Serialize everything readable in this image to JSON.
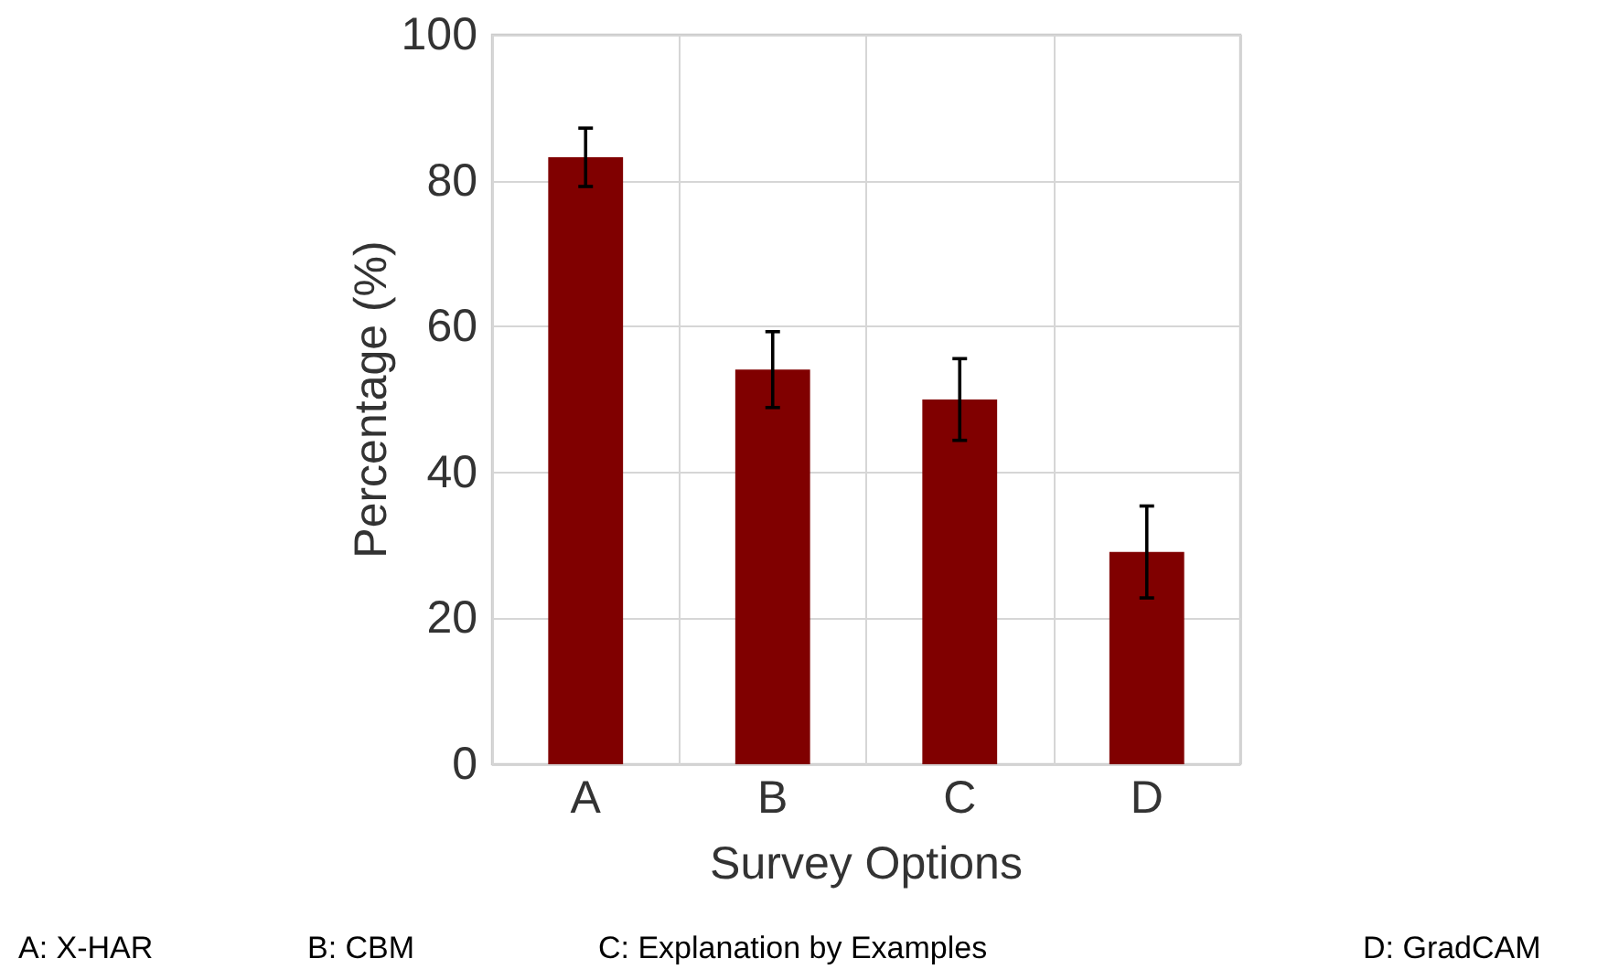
{
  "chart_data": {
    "type": "bar",
    "xlabel": "Survey Options",
    "ylabel": "Percentage (%)",
    "categories": [
      "A",
      "B",
      "C",
      "D"
    ],
    "values": [
      83.2,
      54.1,
      50.0,
      29.1
    ],
    "errors": [
      4,
      5.2,
      5.6,
      6.3
    ],
    "color": "#800000",
    "ylim": [
      0,
      100
    ],
    "yticks": [
      0,
      20,
      40,
      60,
      80,
      100
    ],
    "grid": true,
    "annotations": [
      "A: X-HAR",
      "B: CBM",
      "C: Explanation by Examples",
      "D: GradCAM"
    ]
  }
}
